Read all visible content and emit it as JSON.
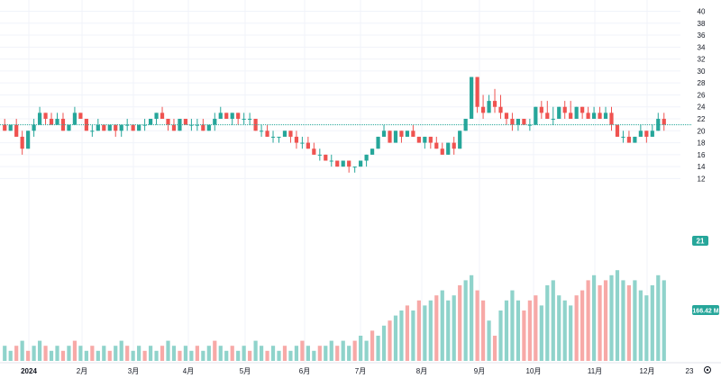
{
  "colors": {
    "up": "#26a69a",
    "down": "#ef5350",
    "volume_up": "#8fd3cb",
    "volume_down": "#f7a9a7",
    "grid": "#f0f3fa",
    "price_line": "#26a69a",
    "text": "#131722"
  },
  "chart_data": {
    "type": "candlestick",
    "ylim": [
      11,
      41
    ],
    "y_ticks": [
      "12",
      "14",
      "16",
      "18",
      "20",
      "22",
      "24",
      "26",
      "28",
      "30",
      "32",
      "34",
      "36",
      "38",
      "40"
    ],
    "x_labels": [
      "2024",
      "2月",
      "3月",
      "4月",
      "5月",
      "6月",
      "7月",
      "8月",
      "9月",
      "10月",
      "11月",
      "12月",
      "23"
    ],
    "last_price_label": "21",
    "last_price_value": 21,
    "volume_label": "166.42 M",
    "candles": [
      [
        21,
        22,
        20,
        20
      ],
      [
        20,
        21,
        20,
        21
      ],
      [
        21,
        22,
        19,
        19
      ],
      [
        19,
        20,
        16,
        17
      ],
      [
        17,
        20,
        17,
        20
      ],
      [
        20,
        22,
        19,
        21
      ],
      [
        21,
        24,
        21,
        23
      ],
      [
        23,
        23,
        21,
        22
      ],
      [
        22,
        23,
        21,
        21
      ],
      [
        21,
        23,
        21,
        22
      ],
      [
        22,
        23,
        20,
        20
      ],
      [
        20,
        21,
        20,
        21
      ],
      [
        21,
        24,
        21,
        23
      ],
      [
        23,
        23,
        22,
        22
      ],
      [
        22,
        22,
        20,
        20
      ],
      [
        20,
        21,
        19,
        20
      ],
      [
        20,
        22,
        20,
        21
      ],
      [
        21,
        21,
        20,
        20
      ],
      [
        20,
        21,
        20,
        21
      ],
      [
        21,
        21,
        19,
        20
      ],
      [
        20,
        21,
        19,
        21
      ],
      [
        21,
        22,
        20,
        21
      ],
      [
        21,
        21,
        20,
        20
      ],
      [
        20,
        21,
        20,
        21
      ],
      [
        21,
        22,
        20,
        21
      ],
      [
        21,
        22,
        21,
        22
      ],
      [
        22,
        23,
        21,
        23
      ],
      [
        23,
        24,
        22,
        22
      ],
      [
        22,
        22,
        20,
        21
      ],
      [
        21,
        22,
        20,
        20
      ],
      [
        20,
        22,
        20,
        22
      ],
      [
        22,
        22,
        21,
        21
      ],
      [
        21,
        22,
        20,
        21
      ],
      [
        21,
        22,
        20,
        21
      ],
      [
        21,
        22,
        20,
        20
      ],
      [
        20,
        21,
        20,
        21
      ],
      [
        21,
        23,
        20,
        22
      ],
      [
        22,
        24,
        22,
        23
      ],
      [
        23,
        23,
        22,
        22
      ],
      [
        22,
        23,
        21,
        23
      ],
      [
        23,
        23,
        21,
        22
      ],
      [
        22,
        23,
        21,
        22
      ],
      [
        22,
        23,
        21,
        22
      ],
      [
        22,
        22,
        20,
        20
      ],
      [
        20,
        21,
        19,
        20
      ],
      [
        20,
        21,
        19,
        19
      ],
      [
        19,
        20,
        18,
        19
      ],
      [
        19,
        19,
        18,
        19
      ],
      [
        19,
        20,
        19,
        20
      ],
      [
        20,
        20,
        18,
        19
      ],
      [
        19,
        20,
        17,
        18
      ],
      [
        18,
        19,
        17,
        18
      ],
      [
        18,
        19,
        17,
        17
      ],
      [
        17,
        18,
        16,
        16
      ],
      [
        16,
        17,
        15,
        16
      ],
      [
        16,
        16,
        15,
        15
      ],
      [
        15,
        16,
        14,
        15
      ],
      [
        15,
        15,
        14,
        14
      ],
      [
        14,
        15,
        14,
        15
      ],
      [
        15,
        15,
        13,
        14
      ],
      [
        14,
        14,
        13,
        14
      ],
      [
        14,
        15,
        14,
        15
      ],
      [
        15,
        16,
        14,
        16
      ],
      [
        16,
        17,
        16,
        17
      ],
      [
        17,
        19,
        17,
        19
      ],
      [
        19,
        21,
        19,
        20
      ],
      [
        20,
        20,
        18,
        18
      ],
      [
        18,
        20,
        18,
        20
      ],
      [
        20,
        20,
        18,
        19
      ],
      [
        19,
        20,
        19,
        20
      ],
      [
        20,
        21,
        19,
        19
      ],
      [
        19,
        19,
        18,
        18
      ],
      [
        18,
        19,
        17,
        19
      ],
      [
        19,
        19,
        17,
        18
      ],
      [
        18,
        19,
        17,
        17
      ],
      [
        17,
        18,
        16,
        16
      ],
      [
        16,
        18,
        16,
        18
      ],
      [
        18,
        19,
        16,
        17
      ],
      [
        17,
        20,
        17,
        20
      ],
      [
        20,
        22,
        20,
        22
      ],
      [
        22,
        29,
        22,
        29
      ],
      [
        29,
        29,
        23,
        24
      ],
      [
        24,
        26,
        22,
        23
      ],
      [
        23,
        26,
        23,
        25
      ],
      [
        25,
        27,
        23,
        24
      ],
      [
        24,
        26,
        22,
        23
      ],
      [
        23,
        23,
        21,
        22
      ],
      [
        22,
        23,
        20,
        21
      ],
      [
        21,
        22,
        20,
        22
      ],
      [
        22,
        22,
        21,
        21
      ],
      [
        21,
        22,
        20,
        21
      ],
      [
        21,
        24,
        21,
        24
      ],
      [
        24,
        25,
        22,
        23
      ],
      [
        23,
        25,
        22,
        22
      ],
      [
        22,
        24,
        21,
        22
      ],
      [
        22,
        24,
        22,
        24
      ],
      [
        24,
        25,
        22,
        23
      ],
      [
        23,
        25,
        22,
        22
      ],
      [
        22,
        24,
        22,
        24
      ],
      [
        24,
        24,
        22,
        23
      ],
      [
        23,
        24,
        22,
        22
      ],
      [
        22,
        24,
        22,
        23
      ],
      [
        23,
        24,
        22,
        22
      ],
      [
        22,
        24,
        22,
        23
      ],
      [
        23,
        24,
        20,
        21
      ],
      [
        21,
        21,
        19,
        19
      ],
      [
        19,
        20,
        18,
        19
      ],
      [
        19,
        20,
        18,
        18
      ],
      [
        18,
        19,
        18,
        19
      ],
      [
        19,
        21,
        19,
        20
      ],
      [
        20,
        20,
        18,
        19
      ],
      [
        19,
        21,
        19,
        20
      ],
      [
        20,
        23,
        20,
        22
      ],
      [
        22,
        23,
        20,
        21
      ]
    ],
    "volumes": [
      [
        3,
        1
      ],
      [
        2,
        1
      ],
      [
        3,
        0
      ],
      [
        4,
        1
      ],
      [
        2,
        0
      ],
      [
        3,
        1
      ],
      [
        4,
        1
      ],
      [
        3,
        0
      ],
      [
        2,
        1
      ],
      [
        3,
        1
      ],
      [
        2,
        0
      ],
      [
        3,
        1
      ],
      [
        4,
        0
      ],
      [
        3,
        1
      ],
      [
        2,
        1
      ],
      [
        3,
        0
      ],
      [
        2,
        1
      ],
      [
        3,
        1
      ],
      [
        2,
        0
      ],
      [
        3,
        1
      ],
      [
        4,
        1
      ],
      [
        3,
        0
      ],
      [
        2,
        1
      ],
      [
        3,
        1
      ],
      [
        2,
        0
      ],
      [
        3,
        1
      ],
      [
        2,
        1
      ],
      [
        3,
        0
      ],
      [
        4,
        1
      ],
      [
        3,
        1
      ],
      [
        2,
        0
      ],
      [
        3,
        1
      ],
      [
        2,
        1
      ],
      [
        3,
        0
      ],
      [
        2,
        1
      ],
      [
        3,
        1
      ],
      [
        4,
        0
      ],
      [
        3,
        1
      ],
      [
        2,
        1
      ],
      [
        3,
        0
      ],
      [
        2,
        1
      ],
      [
        3,
        1
      ],
      [
        2,
        0
      ],
      [
        4,
        1
      ],
      [
        3,
        1
      ],
      [
        2,
        0
      ],
      [
        3,
        1
      ],
      [
        2,
        1
      ],
      [
        3,
        0
      ],
      [
        2,
        1
      ],
      [
        3,
        1
      ],
      [
        4,
        0
      ],
      [
        3,
        1
      ],
      [
        2,
        1
      ],
      [
        3,
        0
      ],
      [
        3,
        1
      ],
      [
        4,
        1
      ],
      [
        3,
        0
      ],
      [
        4,
        1
      ],
      [
        3,
        1
      ],
      [
        4,
        0
      ],
      [
        5,
        1
      ],
      [
        4,
        1
      ],
      [
        6,
        0
      ],
      [
        5,
        1
      ],
      [
        7,
        1
      ],
      [
        8,
        0
      ],
      [
        9,
        1
      ],
      [
        10,
        1
      ],
      [
        11,
        0
      ],
      [
        10,
        1
      ],
      [
        12,
        0
      ],
      [
        11,
        1
      ],
      [
        12,
        1
      ],
      [
        13,
        0
      ],
      [
        14,
        1
      ],
      [
        12,
        1
      ],
      [
        13,
        1
      ],
      [
        15,
        0
      ],
      [
        16,
        1
      ],
      [
        17,
        1
      ],
      [
        14,
        0
      ],
      [
        12,
        0
      ],
      [
        8,
        1
      ],
      [
        5,
        0
      ],
      [
        10,
        1
      ],
      [
        12,
        1
      ],
      [
        14,
        1
      ],
      [
        12,
        1
      ],
      [
        10,
        0
      ],
      [
        12,
        0
      ],
      [
        13,
        0
      ],
      [
        11,
        1
      ],
      [
        15,
        1
      ],
      [
        16,
        1
      ],
      [
        13,
        1
      ],
      [
        12,
        1
      ],
      [
        11,
        1
      ],
      [
        13,
        0
      ],
      [
        14,
        0
      ],
      [
        16,
        0
      ],
      [
        17,
        1
      ],
      [
        15,
        0
      ],
      [
        16,
        0
      ],
      [
        17,
        1
      ],
      [
        18,
        1
      ],
      [
        16,
        1
      ],
      [
        15,
        0
      ],
      [
        16,
        1
      ],
      [
        14,
        1
      ],
      [
        13,
        1
      ],
      [
        15,
        1
      ],
      [
        17,
        1
      ],
      [
        16,
        1
      ]
    ]
  }
}
